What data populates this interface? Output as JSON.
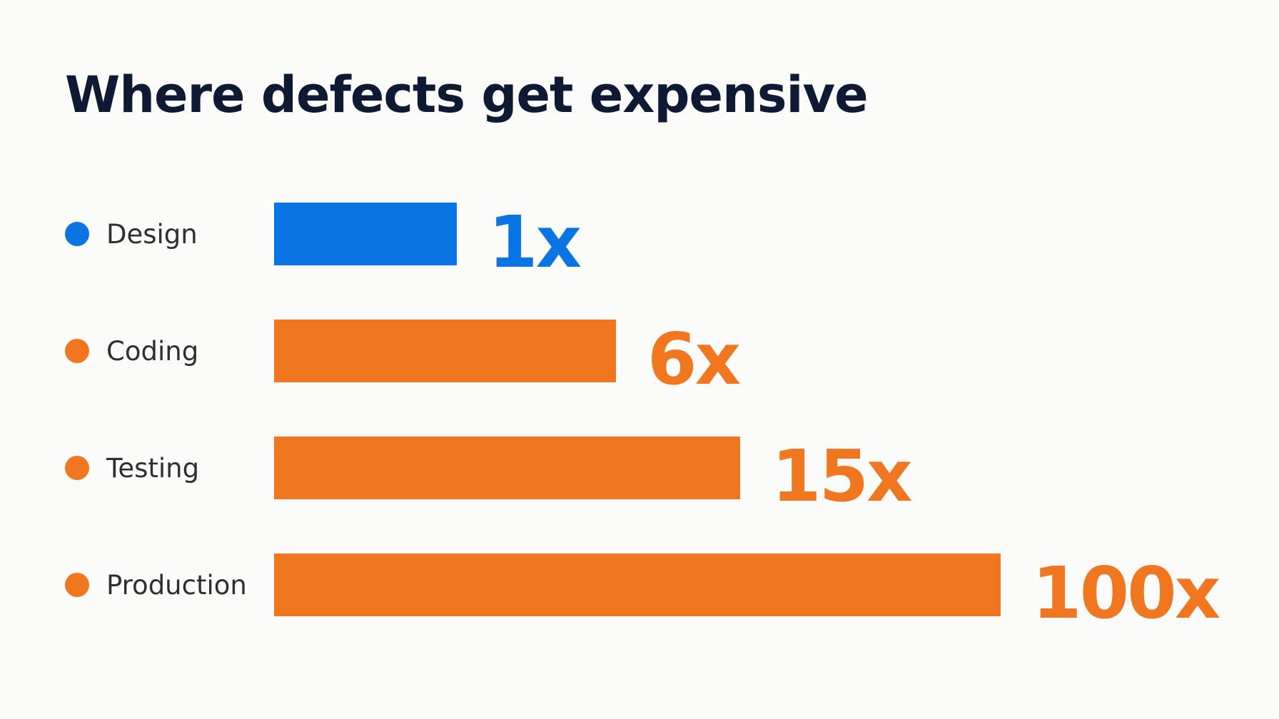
{
  "chart_data": {
    "type": "bar",
    "orientation": "horizontal",
    "title": "Where defects get expensive",
    "categories": [
      "Design",
      "Coding",
      "Testing",
      "Production"
    ],
    "values": [
      1,
      6,
      15,
      100
    ],
    "value_labels": [
      "1x",
      "6x",
      "15x",
      "100x"
    ],
    "colors": [
      "#0a74e5",
      "#f07620",
      "#f07620",
      "#f07620"
    ],
    "xlabel": "",
    "ylabel": "",
    "grid": false,
    "legend": "none"
  },
  "theme": {
    "background": "#fbfbf9",
    "title_color": "#0e1a33",
    "label_color": "#2f2f33"
  }
}
